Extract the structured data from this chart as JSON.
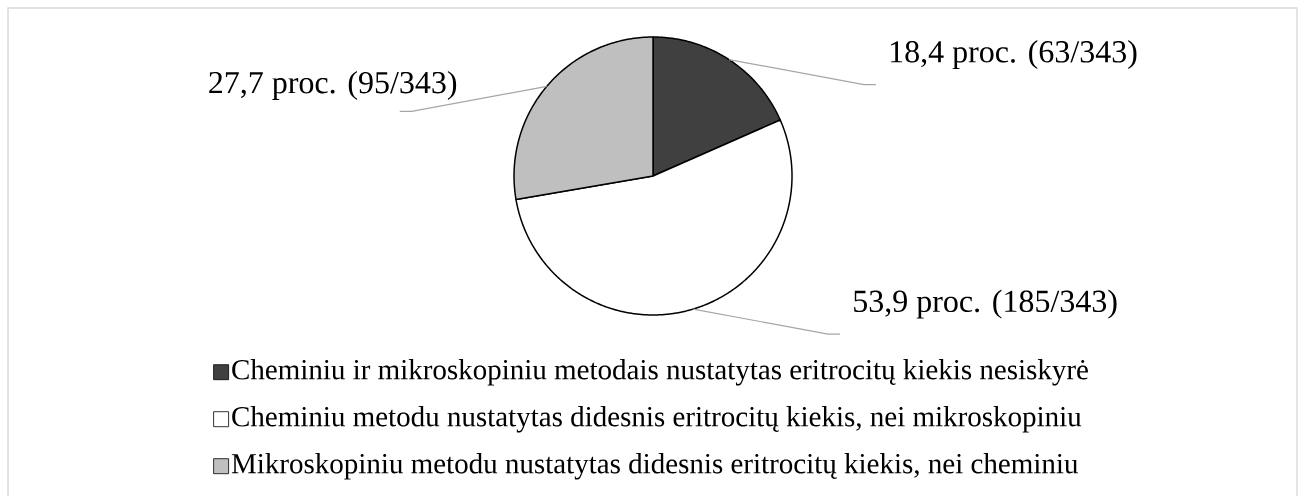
{
  "chart_data": {
    "type": "pie",
    "categories": [
      "Cheminiu ir mikroskopiniu metodais nustatytas eritrocitų kiekis nesiskyrė",
      "Cheminiu metodu nustatytas didesnis eritrocitų kiekis, nei mikroskopiniu",
      "Mikroskopiniu metodu nustatytas didesnis eritrocitų kiekis, nei cheminiu"
    ],
    "values": [
      18.4,
      53.9,
      27.7
    ],
    "colors": [
      "#404040",
      "#ffffff",
      "#bfbfbf"
    ],
    "value_labels": [
      "18,4 proc. (63/343)",
      "53,9 proc. (185/343)",
      "27,7 proc. (95/343)"
    ],
    "legend": "bottom"
  }
}
